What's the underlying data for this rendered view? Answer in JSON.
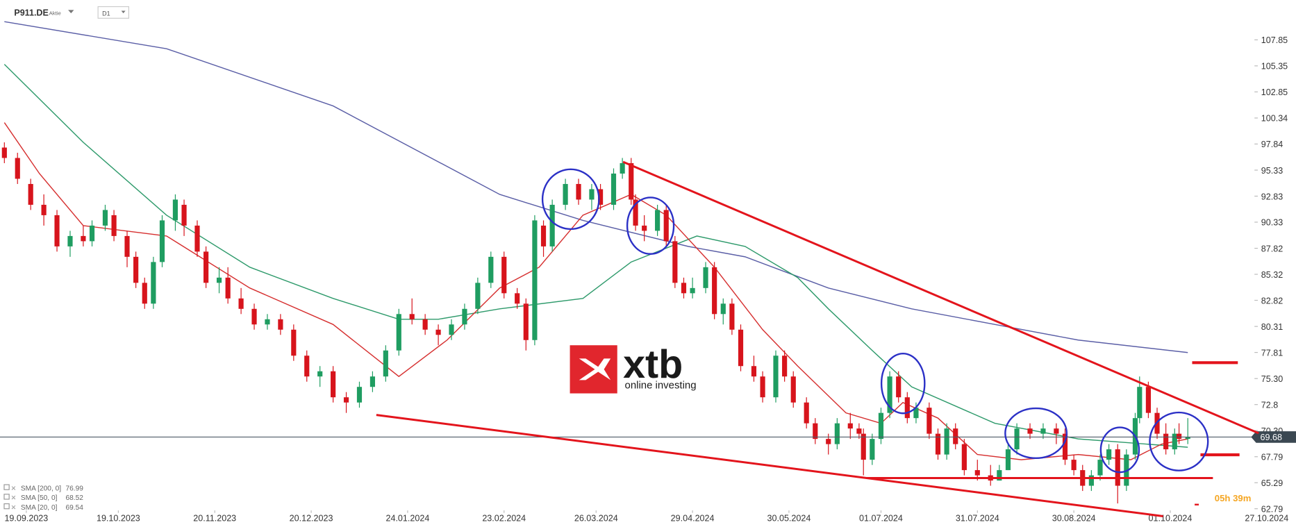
{
  "header": {
    "symbol": "P911.DE",
    "instrument_type": "Aktie",
    "interval": "D1"
  },
  "countdown": "05h 39m",
  "logo": {
    "brand": "xtb",
    "tagline": "online investing"
  },
  "chart_data": {
    "type": "candlestick",
    "xlim": [
      0,
      290
    ],
    "ylim": [
      62.63,
      111.68
    ],
    "xticks": [
      {
        "value": 6,
        "label": "19.09.2023"
      },
      {
        "value": 27,
        "label": "19.10.2023"
      },
      {
        "value": 49,
        "label": "20.11.2023"
      },
      {
        "value": 71,
        "label": "20.12.2023"
      },
      {
        "value": 93,
        "label": "24.01.2024"
      },
      {
        "value": 115,
        "label": "23.02.2024"
      },
      {
        "value": 136,
        "label": "26.03.2024"
      },
      {
        "value": 158,
        "label": "29.04.2024"
      },
      {
        "value": 180,
        "label": "30.05.2024"
      },
      {
        "value": 201,
        "label": "01.07.2024"
      },
      {
        "value": 223,
        "label": "31.07.2024"
      },
      {
        "value": 245,
        "label": "30.08.2024"
      },
      {
        "value": 267,
        "label": "01.10.2024"
      },
      {
        "value": 289,
        "label": "27.10.2024"
      }
    ],
    "yticks": [
      107.85,
      105.35,
      102.85,
      100.34,
      97.84,
      95.33,
      92.83,
      90.33,
      87.82,
      85.32,
      82.82,
      80.31,
      77.81,
      {
        "value": 75.3,
        "label": "75.30"
      },
      72.8,
      {
        "value": 70.3,
        "label": "70.30"
      },
      67.79,
      65.29,
      62.79
    ],
    "up_color": "#1f9d61",
    "down_color": "#d7141c",
    "candles": {
      "x": [
        1,
        4,
        7,
        10,
        13,
        16,
        19,
        21,
        24,
        26,
        29,
        31,
        33,
        35,
        37,
        40,
        42,
        45,
        47,
        50,
        52,
        55,
        58,
        61,
        64,
        67,
        70,
        73,
        76,
        79,
        82,
        85,
        88,
        91,
        94,
        97,
        100,
        103,
        106,
        109,
        112,
        115,
        118,
        120,
        122,
        124,
        126,
        129,
        132,
        135,
        137,
        140,
        142,
        144,
        145,
        147,
        150,
        152,
        154,
        156,
        158,
        161,
        163,
        165,
        167,
        169,
        172,
        174,
        177,
        179,
        181,
        184,
        186,
        189,
        191,
        194,
        196,
        197,
        199,
        201,
        203,
        205,
        207,
        209,
        212,
        214,
        216,
        218,
        220,
        223,
        226,
        228,
        230,
        232,
        235,
        238,
        241,
        243,
        245,
        247,
        249,
        251,
        253,
        255,
        257,
        259,
        260,
        262,
        264,
        266,
        268,
        269,
        271
      ],
      "open": [
        97.5,
        96.5,
        94,
        92,
        91,
        88,
        89,
        88.5,
        90,
        91,
        89,
        87,
        84.5,
        82.5,
        86.5,
        90.5,
        92,
        90,
        87.5,
        84.5,
        85,
        83,
        82,
        80.5,
        81,
        80,
        77.5,
        75.5,
        76,
        73.5,
        73,
        74.5,
        75.5,
        78,
        81.5,
        81,
        80,
        79.5,
        80.5,
        82,
        84.5,
        87,
        83.5,
        82.5,
        79,
        90,
        88,
        92,
        94,
        92.5,
        93.5,
        92,
        95,
        96,
        92.5,
        90,
        89.5,
        91.5,
        88.5,
        84.5,
        83.5,
        84,
        86,
        81.5,
        82.5,
        80,
        76.5,
        75.5,
        73.5,
        77.5,
        75.5,
        73,
        71,
        69.5,
        69,
        71,
        70.5,
        70,
        67.5,
        69.5,
        72,
        75.5,
        73.5,
        71.5,
        72.5,
        70,
        68,
        70.5,
        69,
        66.5,
        66,
        65.5,
        66.5,
        68.5,
        70.5,
        70,
        70.5,
        70,
        67.5,
        66.5,
        65,
        66,
        67.5,
        68.5,
        65,
        68,
        71.5,
        74.5,
        72,
        70,
        68.5,
        70,
        69.5
      ],
      "high": [
        98,
        97,
        94.5,
        93,
        91.5,
        89.5,
        90,
        90.5,
        92,
        91.5,
        89.5,
        87.5,
        85,
        87,
        91,
        93,
        92.5,
        90.5,
        88,
        86,
        86,
        84,
        82.5,
        81.5,
        81.5,
        80.5,
        78,
        76.5,
        76.5,
        74,
        75,
        76,
        78.5,
        82,
        83,
        81.5,
        80.5,
        81,
        82.5,
        85,
        87.5,
        87.5,
        84,
        83,
        91,
        90.5,
        92.5,
        94.5,
        94.5,
        94,
        94,
        95.5,
        96.5,
        96.5,
        93,
        91,
        92,
        92,
        89,
        85,
        85,
        86.5,
        86.5,
        83,
        83,
        80.5,
        77.5,
        76,
        78,
        78,
        76,
        73.5,
        71.5,
        70,
        71.5,
        72,
        71,
        70.5,
        70,
        72.5,
        76,
        76,
        74,
        73,
        73,
        70.5,
        71,
        71,
        69.5,
        67.5,
        67,
        67,
        69,
        71,
        71,
        71,
        71,
        70.5,
        68,
        67,
        66.5,
        68,
        69,
        69,
        68.5,
        72,
        75.5,
        75,
        72.5,
        71,
        70.5,
        71,
        71.5
      ],
      "low": [
        96,
        94,
        91.5,
        90,
        87.5,
        87,
        88,
        88,
        89.5,
        88.5,
        86,
        84,
        82,
        82,
        86,
        89.5,
        89,
        87,
        84,
        83.5,
        82.5,
        81.5,
        80,
        80,
        79.5,
        77,
        75,
        74.5,
        73,
        72,
        72.5,
        74,
        75,
        77.5,
        80.5,
        79.5,
        78.5,
        79,
        80,
        81.5,
        84,
        83,
        82,
        78,
        78.5,
        87,
        87.5,
        91.5,
        92,
        91.5,
        91.5,
        91.5,
        94.5,
        92,
        89.5,
        88.5,
        89,
        88,
        84,
        83,
        83,
        83.5,
        81,
        80.5,
        79.5,
        76,
        75,
        73,
        73,
        75,
        72.5,
        70.5,
        69,
        68,
        68.5,
        69.5,
        69.5,
        66,
        67,
        69,
        71.5,
        73,
        71,
        71,
        69.5,
        67.5,
        67.5,
        68.5,
        66,
        65.5,
        65,
        65.5,
        66.5,
        68,
        69.5,
        69.5,
        69,
        67,
        66,
        64.5,
        64.5,
        65.5,
        67,
        63.3,
        64.5,
        67.5,
        71,
        71.5,
        69.5,
        68,
        68,
        69,
        69
      ],
      "close": [
        96.5,
        94.5,
        92,
        91,
        88,
        89,
        88.5,
        90,
        91.5,
        89,
        87,
        84.5,
        82.5,
        86.5,
        90.5,
        92.5,
        90,
        87.5,
        84.5,
        85,
        83,
        82,
        80.5,
        81,
        80,
        77.5,
        75.5,
        76,
        73.5,
        73,
        74.5,
        75.5,
        78,
        81.5,
        81,
        80,
        79.5,
        80.5,
        82,
        84.5,
        87,
        83.5,
        82.5,
        79,
        90.5,
        88,
        92,
        94,
        92.5,
        93.5,
        92,
        95,
        96,
        92.5,
        90,
        89.5,
        91.5,
        88.5,
        84.5,
        83.5,
        84,
        86,
        81.5,
        82.5,
        80,
        76.5,
        75.5,
        73.5,
        77.5,
        75.5,
        73,
        71,
        69.5,
        69,
        71,
        70.5,
        70,
        67.5,
        69.5,
        72,
        75.5,
        73.5,
        71.5,
        72.5,
        70,
        68,
        70.5,
        69,
        66.5,
        66,
        65.5,
        66.5,
        68.5,
        70.5,
        70,
        70.5,
        70,
        67.5,
        66.5,
        65,
        66,
        67.5,
        68.5,
        65,
        68,
        71.5,
        74.5,
        72,
        70,
        68.5,
        70,
        69.5,
        69.68
      ]
    },
    "series": [
      {
        "name": "SMA [200, 0]",
        "last_value": 76.99,
        "color": "#5a5ea6",
        "x": [
          1,
          38,
          76,
          114,
          133,
          157,
          170,
          189,
          208,
          227,
          246,
          271
        ],
        "values": [
          109.6,
          107,
          101.5,
          93,
          90.5,
          88,
          87,
          84,
          82,
          80.5,
          79,
          77.8
        ]
      },
      {
        "name": "SMA [50, 0]",
        "last_value": 68.52,
        "color": "#2e9a6b",
        "x": [
          1,
          19,
          38,
          57,
          76,
          91,
          100,
          114,
          133,
          144,
          159,
          170,
          182,
          189,
          199,
          208,
          227,
          246,
          271
        ],
        "values": [
          105.5,
          98,
          91,
          86,
          83,
          81,
          81,
          82,
          83,
          86.5,
          89,
          88,
          85,
          82,
          78,
          74.5,
          71,
          69.5,
          68.7
        ]
      },
      {
        "name": "SMA [20, 0]",
        "last_value": 69.54,
        "color": "#d63030",
        "x": [
          1,
          9,
          19,
          38,
          57,
          76,
          91,
          102,
          114,
          123,
          133,
          144,
          152,
          163,
          174,
          182,
          193,
          201,
          206,
          214,
          223,
          233,
          246,
          258,
          265,
          271
        ],
        "values": [
          99.9,
          95,
          90,
          89,
          84,
          80.5,
          75.5,
          79,
          84,
          86,
          91,
          93,
          91,
          86,
          80,
          76.5,
          72,
          71,
          73,
          71.5,
          68,
          67.5,
          68,
          67.5,
          69,
          69.5
        ]
      }
    ]
  }
}
